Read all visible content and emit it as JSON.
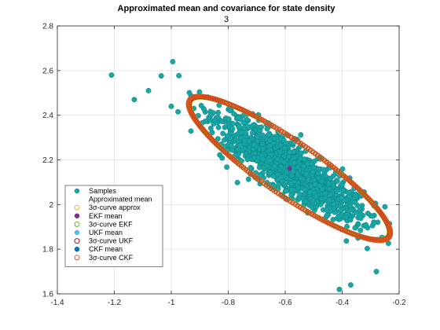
{
  "chart_data": {
    "type": "scatter",
    "title": "Approximated mean and covariance for state density",
    "subtitle": "3",
    "xlabel": "",
    "ylabel": "",
    "xlim": [
      -1.4,
      -0.2
    ],
    "ylim": [
      1.6,
      2.8
    ],
    "x_ticks": [
      "-1.4",
      "-1.2",
      "-1",
      "-0.8",
      "-0.6",
      "-0.4",
      "-0.2"
    ],
    "y_ticks": [
      "1.6",
      "1.8",
      "2",
      "2.2",
      "2.4",
      "2.6",
      "2.8"
    ],
    "grid": true,
    "legend_location": "bottom-left",
    "samples_mean": [
      -0.585,
      2.162
    ],
    "sample_outliers": [
      [
        -1.21,
        2.58
      ],
      [
        -0.995,
        2.64
      ],
      [
        -1.08,
        2.51
      ],
      [
        -1.13,
        2.47
      ],
      [
        -1.0,
        2.44
      ],
      [
        -0.25,
        1.99
      ],
      [
        -0.28,
        1.7
      ],
      [
        -0.41,
        1.62
      ],
      [
        -0.37,
        1.64
      ]
    ],
    "ellipse_3sigma": {
      "center": [
        -0.585,
        2.162
      ],
      "semi_major": 0.465,
      "semi_minor": 0.11,
      "angle_deg": -42
    },
    "series": [
      {
        "name": "Samples",
        "marker": "filled-circle",
        "color": "#17a6a6"
      },
      {
        "name": "Approximated mean",
        "marker": "none",
        "color": "#ffffff"
      },
      {
        "name": "3σ-curve approx",
        "marker": "open-circle",
        "color": "#edb120"
      },
      {
        "name": "EKF mean",
        "marker": "filled-circle",
        "color": "#7e2f8e"
      },
      {
        "name": "3σ-curve EKF",
        "marker": "open-circle",
        "color": "#77ac30"
      },
      {
        "name": "UKF mean",
        "marker": "filled-circle",
        "color": "#4dbeee"
      },
      {
        "name": "3σ-curve UKF",
        "marker": "open-circle",
        "color": "#a2142f"
      },
      {
        "name": "CKF mean",
        "marker": "filled-circle",
        "color": "#0072bd"
      },
      {
        "name": "3σ-curve CKF",
        "marker": "open-circle",
        "color": "#d95319"
      }
    ]
  }
}
